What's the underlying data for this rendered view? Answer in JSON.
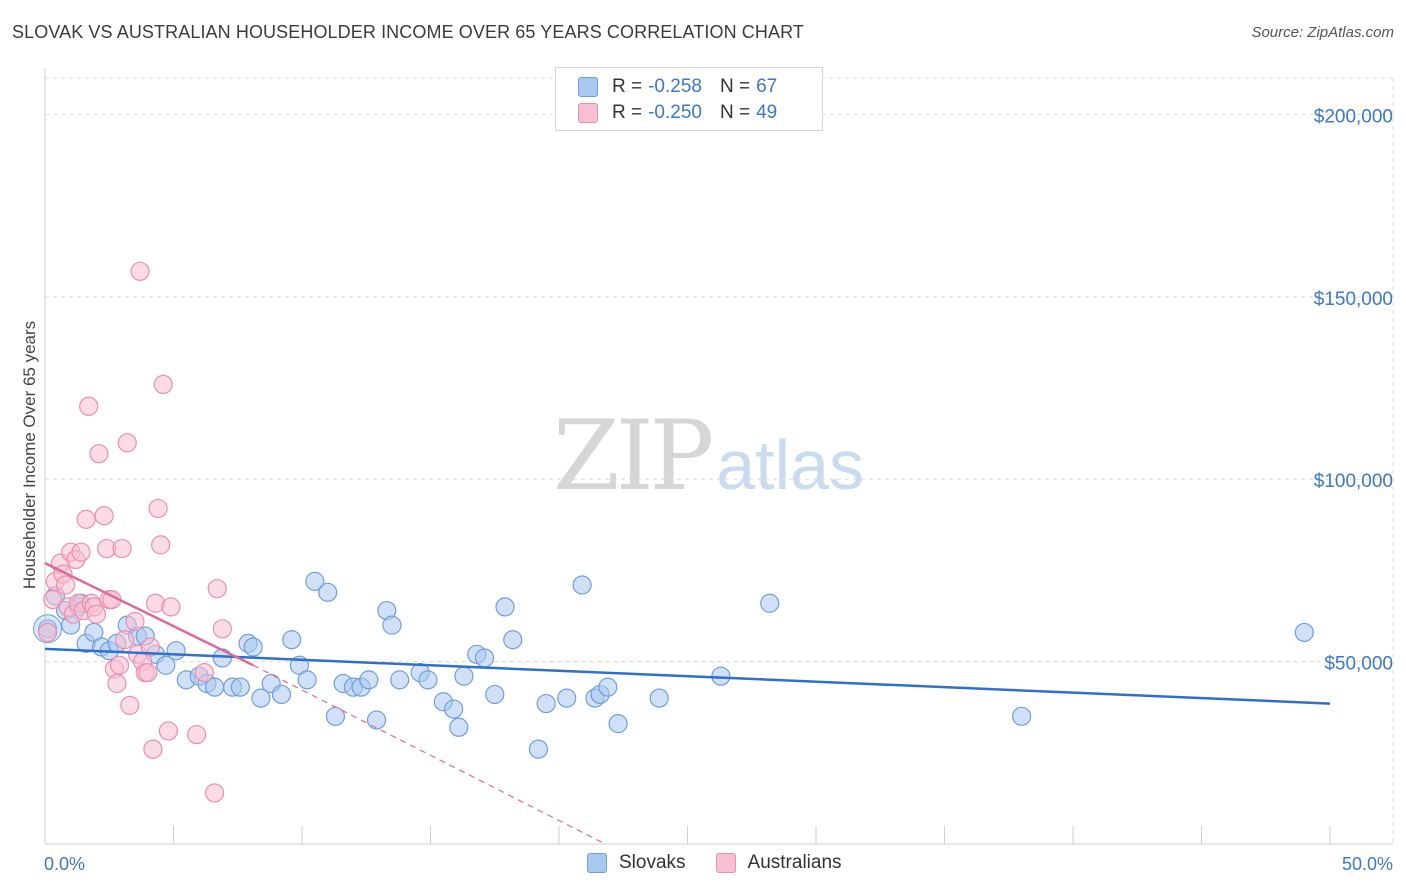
{
  "title": "SLOVAK VS AUSTRALIAN HOUSEHOLDER INCOME OVER 65 YEARS CORRELATION CHART",
  "source": "Source: ZipAtlas.com",
  "watermark": {
    "zip": "ZIP",
    "atlas": "atlas"
  },
  "legend": {
    "rows": [
      {
        "r_label": "R =",
        "r_value": "-0.258",
        "n_label": "N =",
        "n_value": "67",
        "color": "#a9c8f0",
        "border": "#6f9fdc"
      },
      {
        "r_label": "R =",
        "r_value": "-0.250",
        "n_label": "N =",
        "n_value": "49",
        "color": "#f7bfd1",
        "border": "#e88fb0"
      }
    ]
  },
  "bottom_legend": [
    {
      "label": "Slovaks",
      "color": "#a9c8f0",
      "border": "#6f9fdc"
    },
    {
      "label": "Australians",
      "color": "#f7bfd1",
      "border": "#e88fb0"
    }
  ],
  "chart_data": {
    "type": "scatter",
    "title": "SLOVAK VS AUSTRALIAN HOUSEHOLDER INCOME OVER 65 YEARS CORRELATION CHART",
    "xlabel": "",
    "ylabel": "Householder Income Over 65 years",
    "xlim": [
      0,
      50
    ],
    "ylim": [
      0,
      210000
    ],
    "x_tick_labels": [
      "0.0%",
      "50.0%"
    ],
    "y_ticks": [
      50000,
      100000,
      150000,
      200000
    ],
    "y_tick_labels": [
      "$50,000",
      "$100,000",
      "$150,000",
      "$200,000"
    ],
    "series": [
      {
        "name": "Slovaks",
        "color": "#6f9fdc",
        "fill": "#a9c8f0",
        "trend": {
          "x": [
            0,
            50
          ],
          "y": [
            53500,
            38500
          ],
          "color": "#2f6fcf"
        },
        "points": [
          [
            0.1,
            59000
          ],
          [
            0.4,
            68000
          ],
          [
            0.8,
            64000
          ],
          [
            1.0,
            60000
          ],
          [
            1.3,
            65000
          ],
          [
            1.6,
            55000
          ],
          [
            1.9,
            58000
          ],
          [
            2.2,
            54000
          ],
          [
            2.5,
            53000
          ],
          [
            2.8,
            55000
          ],
          [
            3.2,
            60000
          ],
          [
            3.6,
            57000
          ],
          [
            3.9,
            57000
          ],
          [
            4.3,
            52000
          ],
          [
            4.7,
            49000
          ],
          [
            5.1,
            53000
          ],
          [
            5.5,
            45000
          ],
          [
            6.0,
            46000
          ],
          [
            6.3,
            44000
          ],
          [
            6.6,
            43000
          ],
          [
            6.9,
            51000
          ],
          [
            7.3,
            43000
          ],
          [
            7.6,
            43000
          ],
          [
            7.9,
            55000
          ],
          [
            8.1,
            54000
          ],
          [
            8.4,
            40000
          ],
          [
            8.8,
            44000
          ],
          [
            9.2,
            41000
          ],
          [
            9.6,
            56000
          ],
          [
            9.9,
            49000
          ],
          [
            10.2,
            45000
          ],
          [
            10.5,
            72000
          ],
          [
            11.0,
            69000
          ],
          [
            11.3,
            35000
          ],
          [
            11.6,
            44000
          ],
          [
            12.0,
            43000
          ],
          [
            12.3,
            43000
          ],
          [
            12.6,
            45000
          ],
          [
            12.9,
            34000
          ],
          [
            13.3,
            64000
          ],
          [
            13.5,
            60000
          ],
          [
            13.8,
            45000
          ],
          [
            14.6,
            47000
          ],
          [
            14.9,
            45000
          ],
          [
            15.5,
            39000
          ],
          [
            15.9,
            37000
          ],
          [
            16.1,
            32000
          ],
          [
            16.3,
            46000
          ],
          [
            16.8,
            52000
          ],
          [
            17.1,
            51000
          ],
          [
            17.5,
            41000
          ],
          [
            17.9,
            65000
          ],
          [
            18.2,
            56000
          ],
          [
            19.2,
            26000
          ],
          [
            19.5,
            38500
          ],
          [
            20.3,
            40000
          ],
          [
            20.9,
            71000
          ],
          [
            21.4,
            40000
          ],
          [
            21.6,
            41000
          ],
          [
            21.9,
            43000
          ],
          [
            22.3,
            33000
          ],
          [
            23.9,
            40000
          ],
          [
            26.3,
            46000
          ],
          [
            28.2,
            66000
          ],
          [
            38.0,
            35000
          ],
          [
            49.0,
            58000
          ],
          [
            1.4,
            66000
          ]
        ]
      },
      {
        "name": "Australians",
        "color": "#e88fb0",
        "fill": "#f7bfd1",
        "trend": {
          "x": [
            0,
            8.1
          ],
          "y": [
            77000,
            49000
          ],
          "dash_to": [
            21.8,
            0
          ],
          "color": "#e0679a"
        },
        "points": [
          [
            0.1,
            58000
          ],
          [
            0.3,
            67000
          ],
          [
            0.4,
            72000
          ],
          [
            0.6,
            77000
          ],
          [
            0.7,
            74000
          ],
          [
            0.8,
            71000
          ],
          [
            0.9,
            65000
          ],
          [
            1.0,
            80000
          ],
          [
            1.1,
            63000
          ],
          [
            1.2,
            78000
          ],
          [
            1.3,
            66000
          ],
          [
            1.4,
            80000
          ],
          [
            1.5,
            64000
          ],
          [
            1.6,
            89000
          ],
          [
            1.7,
            120000
          ],
          [
            1.8,
            66000
          ],
          [
            1.9,
            65000
          ],
          [
            2.0,
            63000
          ],
          [
            2.1,
            107000
          ],
          [
            2.3,
            90000
          ],
          [
            2.4,
            81000
          ],
          [
            2.5,
            67000
          ],
          [
            2.6,
            67000
          ],
          [
            2.7,
            48000
          ],
          [
            2.8,
            44000
          ],
          [
            2.9,
            49000
          ],
          [
            3.0,
            81000
          ],
          [
            3.1,
            56000
          ],
          [
            3.2,
            110000
          ],
          [
            3.3,
            38000
          ],
          [
            3.5,
            61000
          ],
          [
            3.6,
            52000
          ],
          [
            3.7,
            157000
          ],
          [
            3.8,
            50000
          ],
          [
            3.9,
            47000
          ],
          [
            4.0,
            47000
          ],
          [
            4.1,
            54000
          ],
          [
            4.2,
            26000
          ],
          [
            4.3,
            66000
          ],
          [
            4.4,
            92000
          ],
          [
            4.5,
            82000
          ],
          [
            4.6,
            126000
          ],
          [
            4.8,
            31000
          ],
          [
            4.9,
            65000
          ],
          [
            5.9,
            30000
          ],
          [
            6.2,
            47000
          ],
          [
            6.6,
            14000
          ],
          [
            6.7,
            70000
          ],
          [
            6.9,
            59000
          ]
        ]
      }
    ]
  }
}
